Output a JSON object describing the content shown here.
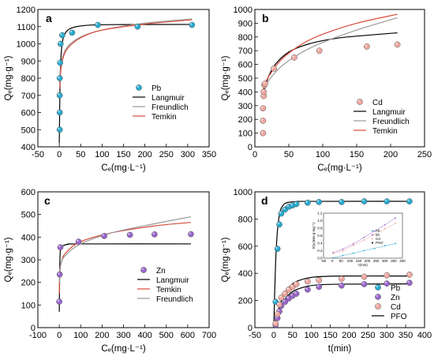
{
  "chart_data": [
    {
      "panel": "a",
      "type": "scatter",
      "xlabel": "Cₑ(mg·L⁻¹)",
      "ylabel": "Qₑ(mg·g⁻¹)",
      "xlim": [
        -50,
        350
      ],
      "ylim": [
        400,
        1200
      ],
      "xticks": [
        -50,
        0,
        50,
        100,
        150,
        200,
        250,
        300,
        350
      ],
      "yticks": [
        400,
        500,
        600,
        700,
        800,
        900,
        1000,
        1100,
        1200
      ],
      "legend_position": "right-center",
      "scatter": {
        "name": "Pb",
        "color": "#29aacf",
        "x": [
          1,
          1,
          1,
          1,
          2,
          3,
          7,
          30,
          90,
          183,
          310
        ],
        "y": [
          500,
          600,
          700,
          800,
          890,
          1000,
          1050,
          1065,
          1110,
          1100,
          1110
        ]
      },
      "series": [
        {
          "name": "Langmuir",
          "color": "#000000",
          "x": [
            0,
            2,
            5,
            10,
            20,
            40,
            80,
            150,
            310
          ],
          "y": [
            420,
            800,
            960,
            1040,
            1080,
            1100,
            1110,
            1112,
            1113
          ]
        },
        {
          "name": "Freundlich",
          "color": "#9a9a9a",
          "x": [
            1,
            3,
            8,
            20,
            50,
            100,
            200,
            310
          ],
          "y": [
            770,
            855,
            925,
            985,
            1040,
            1080,
            1120,
            1145
          ]
        },
        {
          "name": "Temkin",
          "color": "#d84a3a",
          "x": [
            1,
            3,
            8,
            20,
            50,
            100,
            200,
            310
          ],
          "y": [
            740,
            830,
            910,
            975,
            1035,
            1080,
            1115,
            1140
          ]
        }
      ]
    },
    {
      "panel": "b",
      "type": "scatter",
      "xlabel": "Cₑ(mg·L⁻¹)",
      "ylabel": "Qₑ(mg·g⁻¹)",
      "xlim": [
        0,
        250
      ],
      "ylim": [
        0,
        1000
      ],
      "xticks": [
        0,
        50,
        100,
        150,
        200,
        250
      ],
      "yticks": [
        0,
        100,
        200,
        300,
        400,
        500,
        600,
        700,
        800,
        900,
        1000
      ],
      "legend_position": "bottom-right",
      "scatter": {
        "name": "Cd",
        "color": "#f0a8a0",
        "x": [
          12,
          12,
          12,
          13,
          13,
          14,
          15,
          28,
          58,
          95,
          165,
          210
        ],
        "y": [
          100,
          190,
          280,
          370,
          400,
          450,
          460,
          570,
          650,
          700,
          730,
          745
        ]
      },
      "series": [
        {
          "name": "Langmuir",
          "color": "#000000",
          "x": [
            12,
            15,
            20,
            30,
            50,
            80,
            120,
            160,
            210
          ],
          "y": [
            350,
            430,
            510,
            600,
            690,
            750,
            790,
            810,
            830
          ]
        },
        {
          "name": "Freundlich",
          "color": "#9a9a9a",
          "x": [
            12,
            20,
            40,
            70,
            100,
            150,
            210
          ],
          "y": [
            400,
            480,
            590,
            690,
            760,
            850,
            940
          ]
        },
        {
          "name": "Temkin",
          "color": "#d84a3a",
          "x": [
            12,
            20,
            40,
            70,
            100,
            150,
            210
          ],
          "y": [
            420,
            510,
            640,
            750,
            820,
            900,
            965
          ]
        }
      ]
    },
    {
      "panel": "c",
      "type": "scatter",
      "xlabel": "Cₑ(mg·L⁻¹)",
      "ylabel": "Qₑ(mg·g⁻¹)",
      "xlim": [
        -100,
        700
      ],
      "ylim": [
        0,
        600
      ],
      "xticks": [
        -100,
        0,
        100,
        200,
        300,
        400,
        500,
        600,
        700
      ],
      "yticks": [
        0,
        100,
        200,
        300,
        400,
        500,
        600
      ],
      "legend_position": "bottom-right",
      "scatter": {
        "name": "Zn",
        "color": "#9966cc",
        "x": [
          0,
          2,
          5,
          90,
          210,
          330,
          445,
          615
        ],
        "y": [
          115,
          235,
          355,
          380,
          405,
          410,
          412,
          413
        ]
      },
      "series": [
        {
          "name": "Langmuir",
          "color": "#000000",
          "x": [
            0,
            2,
            5,
            15,
            40,
            100,
            615
          ],
          "y": [
            70,
            250,
            340,
            360,
            368,
            370,
            370
          ]
        },
        {
          "name": "Temkin",
          "color": "#d84a3a",
          "x": [
            0.5,
            2,
            10,
            30,
            100,
            250,
            450,
            615
          ],
          "y": [
            150,
            240,
            290,
            330,
            380,
            420,
            450,
            465
          ]
        },
        {
          "name": "Freundlich",
          "color": "#9a9a9a",
          "x": [
            0.5,
            2,
            10,
            30,
            100,
            250,
            450,
            615
          ],
          "y": [
            200,
            250,
            290,
            320,
            370,
            420,
            460,
            490
          ]
        }
      ]
    },
    {
      "panel": "d",
      "type": "scatter",
      "xlabel": "t(min)",
      "ylabel": "Qₑ(mg·g⁻¹)",
      "xlim": [
        -50,
        400
      ],
      "ylim": [
        0,
        1000
      ],
      "xticks": [
        -50,
        0,
        50,
        100,
        150,
        200,
        250,
        300,
        350,
        400
      ],
      "yticks": [
        0,
        200,
        400,
        600,
        800,
        1000
      ],
      "legend_position": "bottom-right",
      "scatter_series": [
        {
          "name": "Pb",
          "color": "#29aacf",
          "x": [
            5,
            10,
            15,
            20,
            30,
            40,
            50,
            60,
            90,
            120,
            180,
            240,
            300,
            360
          ],
          "y": [
            190,
            580,
            760,
            840,
            870,
            890,
            900,
            910,
            920,
            925,
            925,
            930,
            930,
            930
          ]
        },
        {
          "name": "Zn",
          "color": "#9966cc",
          "x": [
            5,
            10,
            15,
            20,
            30,
            40,
            50,
            60,
            90,
            120,
            180,
            240,
            300,
            360
          ],
          "y": [
            20,
            70,
            120,
            160,
            190,
            215,
            235,
            250,
            280,
            300,
            310,
            320,
            325,
            330
          ]
        },
        {
          "name": "Cd",
          "color": "#f0a8a0",
          "x": [
            5,
            10,
            15,
            20,
            30,
            40,
            50,
            60,
            90,
            120,
            180,
            240,
            300,
            360
          ],
          "y": [
            30,
            100,
            170,
            220,
            250,
            280,
            300,
            320,
            340,
            350,
            360,
            375,
            385,
            390
          ]
        }
      ],
      "series": [
        {
          "name": "PFO",
          "color": "#000000",
          "group": "Pb",
          "x": [
            0,
            5,
            10,
            15,
            20,
            30,
            45,
            60,
            90,
            360
          ],
          "y": [
            0,
            480,
            720,
            830,
            880,
            915,
            925,
            928,
            930,
            930
          ]
        },
        {
          "name": "PFO",
          "color": "#000000",
          "group": "Cd",
          "x": [
            0,
            10,
            20,
            30,
            45,
            60,
            90,
            120,
            180,
            360
          ],
          "y": [
            0,
            110,
            195,
            255,
            310,
            340,
            365,
            375,
            380,
            380
          ]
        },
        {
          "name": "PFO",
          "color": "#000000",
          "group": "Zn",
          "x": [
            0,
            10,
            20,
            30,
            45,
            60,
            90,
            120,
            180,
            360
          ],
          "y": [
            0,
            90,
            160,
            210,
            255,
            280,
            305,
            315,
            320,
            322
          ]
        }
      ],
      "inset": {
        "xlabel": "t(min)",
        "ylabel": "t/Qₜ(min·g·mg⁻¹)",
        "xlim": [
          -50,
          400
        ],
        "ylim": [
          0,
          1.2
        ],
        "xticks": [
          -50,
          0,
          50,
          100,
          150,
          200,
          250,
          300,
          350,
          400
        ],
        "yticks": [
          0,
          0.2,
          0.4,
          0.6,
          0.8,
          1.0,
          1.2
        ],
        "legend": [
          "Pb",
          "Zn",
          "Cd",
          "PSO"
        ],
        "series": [
          {
            "name": "Pb",
            "color": "#29aacf",
            "x": [
              5,
              60,
              120,
              180,
              240,
              300,
              360
            ],
            "y": [
              0.01,
              0.07,
              0.13,
              0.2,
              0.26,
              0.33,
              0.39
            ]
          },
          {
            "name": "Zn",
            "color": "#9966cc",
            "x": [
              5,
              60,
              120,
              180,
              240,
              300,
              360
            ],
            "y": [
              0.15,
              0.24,
              0.38,
              0.55,
              0.72,
              0.89,
              1.07
            ]
          },
          {
            "name": "Cd",
            "color": "#f0a8a0",
            "x": [
              5,
              60,
              120,
              180,
              240,
              300,
              360
            ],
            "y": [
              0.12,
              0.19,
              0.34,
              0.48,
              0.63,
              0.78,
              0.93
            ]
          }
        ]
      }
    }
  ]
}
